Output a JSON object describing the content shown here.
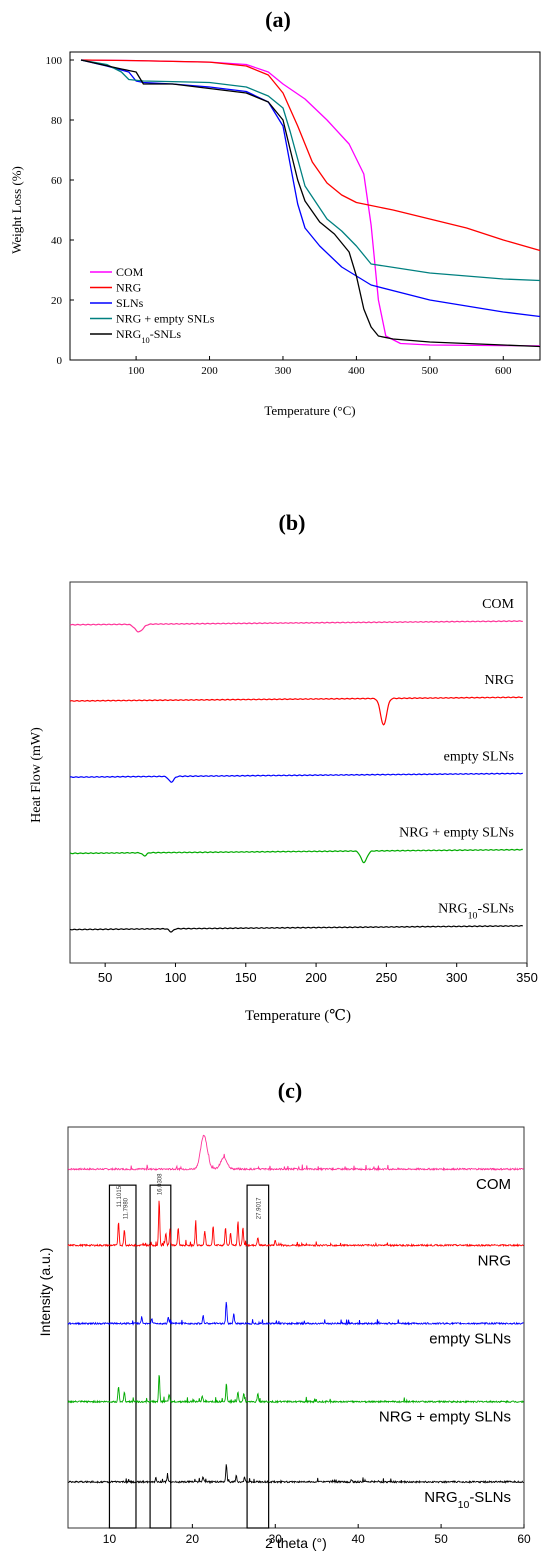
{
  "chart_data": [
    {
      "panel": "(a)",
      "type": "line",
      "xlabel": "Temperature (°C)",
      "ylabel": "Weight Loss (%)",
      "xlim": [
        10,
        650
      ],
      "ylim": [
        0,
        100
      ],
      "xticks": [
        100,
        200,
        300,
        400,
        500,
        600
      ],
      "yticks": [
        0,
        20,
        40,
        60,
        80,
        100
      ],
      "legend_position": "bottom-left",
      "series": [
        {
          "name": "COM",
          "color": "#ff00ff",
          "x": [
            25,
            100,
            200,
            250,
            280,
            300,
            330,
            360,
            390,
            410,
            420,
            430,
            440,
            460,
            500,
            600,
            650
          ],
          "y": [
            100,
            99.8,
            99.3,
            98.5,
            96,
            92,
            87,
            80,
            72,
            62,
            45,
            20,
            8,
            5.5,
            5,
            4.8,
            4.7
          ]
        },
        {
          "name": "NRG",
          "color": "#ff0000",
          "x": [
            25,
            100,
            200,
            250,
            280,
            300,
            320,
            340,
            360,
            380,
            400,
            450,
            500,
            550,
            600,
            650
          ],
          "y": [
            100,
            99.8,
            99.3,
            98,
            95,
            89,
            78,
            66,
            59,
            55,
            52.5,
            50,
            47,
            44,
            40,
            36.5
          ]
        },
        {
          "name": "SLNs",
          "color": "#0000ff",
          "x": [
            25,
            60,
            90,
            100,
            110,
            150,
            200,
            250,
            280,
            300,
            310,
            320,
            330,
            350,
            380,
            420,
            500,
            600,
            650
          ],
          "y": [
            100,
            98,
            96,
            93,
            92.5,
            92,
            91,
            89.5,
            86,
            78,
            65,
            52,
            44,
            38,
            31,
            25,
            20,
            16,
            14.5
          ]
        },
        {
          "name": "NRG + empty SNLs",
          "color": "#008080",
          "x": [
            25,
            60,
            80,
            90,
            110,
            150,
            200,
            250,
            280,
            300,
            310,
            330,
            360,
            380,
            400,
            420,
            500,
            600,
            650
          ],
          "y": [
            100,
            98.5,
            96,
            93.5,
            93,
            92.8,
            92.5,
            91,
            88,
            84,
            76,
            58,
            47,
            43,
            38,
            32,
            29,
            27,
            26.5
          ]
        },
        {
          "name": "NRG10-SNLs",
          "color": "#000000",
          "x": [
            25,
            80,
            100,
            110,
            150,
            200,
            250,
            280,
            300,
            310,
            320,
            330,
            350,
            370,
            390,
            400,
            410,
            420,
            430,
            450,
            500,
            600,
            650
          ],
          "y": [
            100,
            97,
            96,
            92,
            92,
            90.5,
            89,
            86,
            80,
            70,
            60,
            53,
            46,
            42,
            36,
            28,
            17,
            11,
            8,
            7,
            6,
            5,
            4.5
          ]
        }
      ]
    },
    {
      "panel": "(b)",
      "type": "line",
      "xlabel": "Temperature (°C)",
      "ylabel": "Heat Flow (mW)",
      "xlim": [
        25,
        350
      ],
      "xticks": [
        50,
        100,
        150,
        200,
        250,
        300,
        350
      ],
      "y_axis_ticks": false,
      "series": [
        {
          "name": "COM",
          "color": "#ff3399",
          "baseline_y": 0.89,
          "peaks": [
            {
              "x": 74,
              "depth": 0.02,
              "width": 4
            }
          ]
        },
        {
          "name": "NRG",
          "color": "#ff0000",
          "baseline_y": 0.69,
          "peaks": [
            {
              "x": 248,
              "depth": 0.07,
              "width": 3
            }
          ]
        },
        {
          "name": "empty SLNs",
          "color": "#0000ff",
          "baseline_y": 0.49,
          "peaks": [
            {
              "x": 97,
              "depth": 0.015,
              "width": 2.5
            }
          ]
        },
        {
          "name": "NRG + empty SLNs",
          "color": "#00aa00",
          "baseline_y": 0.29,
          "peaks": [
            {
              "x": 78,
              "depth": 0.008,
              "width": 2
            },
            {
              "x": 234,
              "depth": 0.03,
              "width": 3
            }
          ]
        },
        {
          "name": "NRG10-SLNs",
          "color": "#000000",
          "baseline_y": 0.09,
          "peaks": [
            {
              "x": 97,
              "depth": 0.008,
              "width": 2
            }
          ]
        }
      ]
    },
    {
      "panel": "(c)",
      "type": "line",
      "xlabel": "2 theta (°)",
      "ylabel": "Intensity (a.u.)",
      "xlim": [
        5,
        60
      ],
      "xticks": [
        10,
        20,
        30,
        40,
        50,
        60
      ],
      "y_axis_ticks": false,
      "highlight_ranges": [
        [
          10,
          13.2
        ],
        [
          14.9,
          17.4
        ],
        [
          26.6,
          29.2
        ]
      ],
      "peak_labels": [
        "11.1015",
        "11.7980",
        "16.0308",
        "27.9017"
      ],
      "series": [
        {
          "name": "COM",
          "color": "#ff3399",
          "baseline_y": 0.895,
          "peaks": [
            {
              "x": 21.4,
              "h": 0.085
            },
            {
              "x": 23.8,
              "h": 0.028
            }
          ]
        },
        {
          "name": "NRG",
          "color": "#ff0000",
          "baseline_y": 0.705,
          "peaks": [
            {
              "x": 11.1,
              "h": 0.06
            },
            {
              "x": 11.8,
              "h": 0.04
            },
            {
              "x": 16.0,
              "h": 0.115
            },
            {
              "x": 16.8,
              "h": 0.03
            },
            {
              "x": 17.3,
              "h": 0.04
            },
            {
              "x": 18.3,
              "h": 0.045
            },
            {
              "x": 20.4,
              "h": 0.055
            },
            {
              "x": 21.5,
              "h": 0.035
            },
            {
              "x": 22.5,
              "h": 0.05
            },
            {
              "x": 24.0,
              "h": 0.045
            },
            {
              "x": 24.6,
              "h": 0.03
            },
            {
              "x": 25.5,
              "h": 0.06
            },
            {
              "x": 26.1,
              "h": 0.045
            },
            {
              "x": 27.9,
              "h": 0.02
            },
            {
              "x": 30.0,
              "h": 0.012
            }
          ]
        },
        {
          "name": "empty SLNs",
          "color": "#0000ff",
          "baseline_y": 0.51,
          "peaks": [
            {
              "x": 13.9,
              "h": 0.015
            },
            {
              "x": 15.1,
              "h": 0.012
            },
            {
              "x": 17.1,
              "h": 0.015
            },
            {
              "x": 21.3,
              "h": 0.02
            },
            {
              "x": 24.1,
              "h": 0.055
            },
            {
              "x": 25.0,
              "h": 0.025
            }
          ]
        },
        {
          "name": "NRG + empty SLNs",
          "color": "#00aa00",
          "baseline_y": 0.315,
          "peaks": [
            {
              "x": 11.1,
              "h": 0.04
            },
            {
              "x": 11.8,
              "h": 0.025
            },
            {
              "x": 16.0,
              "h": 0.07
            },
            {
              "x": 17.2,
              "h": 0.02
            },
            {
              "x": 21.2,
              "h": 0.015
            },
            {
              "x": 24.1,
              "h": 0.045
            },
            {
              "x": 25.5,
              "h": 0.025
            },
            {
              "x": 26.2,
              "h": 0.02
            },
            {
              "x": 27.9,
              "h": 0.02
            }
          ]
        },
        {
          "name": "NRG10-SLNs",
          "color": "#000000",
          "baseline_y": 0.115,
          "peaks": [
            {
              "x": 15.6,
              "h": 0.01
            },
            {
              "x": 17.0,
              "h": 0.012
            },
            {
              "x": 21.3,
              "h": 0.012
            },
            {
              "x": 24.1,
              "h": 0.045
            },
            {
              "x": 25.3,
              "h": 0.015
            },
            {
              "x": 26.3,
              "h": 0.012
            },
            {
              "x": 39.2,
              "h": 0.006
            }
          ]
        }
      ]
    }
  ],
  "labels": {
    "panel_a": "(a)",
    "panel_b": "(b)",
    "panel_c": "(c)",
    "a_xlabel": "Temperature (°C)",
    "a_ylabel": "Weight Loss (%)",
    "b_xlabel": "Temperature (℃)",
    "b_ylabel": "Heat Flow (mW)",
    "c_xlabel": "2 theta (°)",
    "c_ylabel": "Intensity (a.u.)",
    "a_legend": [
      "COM",
      "NRG",
      "SLNs",
      "NRG + empty SNLs",
      "NRG10-SNLs"
    ],
    "b_curves": [
      "COM",
      "NRG",
      "empty SLNs",
      "NRG + empty SLNs",
      "NRG10-SLNs"
    ],
    "c_curves": [
      "COM",
      "NRG",
      "empty SLNs",
      "NRG + empty SLNs",
      "NRG10-SLNs"
    ]
  }
}
